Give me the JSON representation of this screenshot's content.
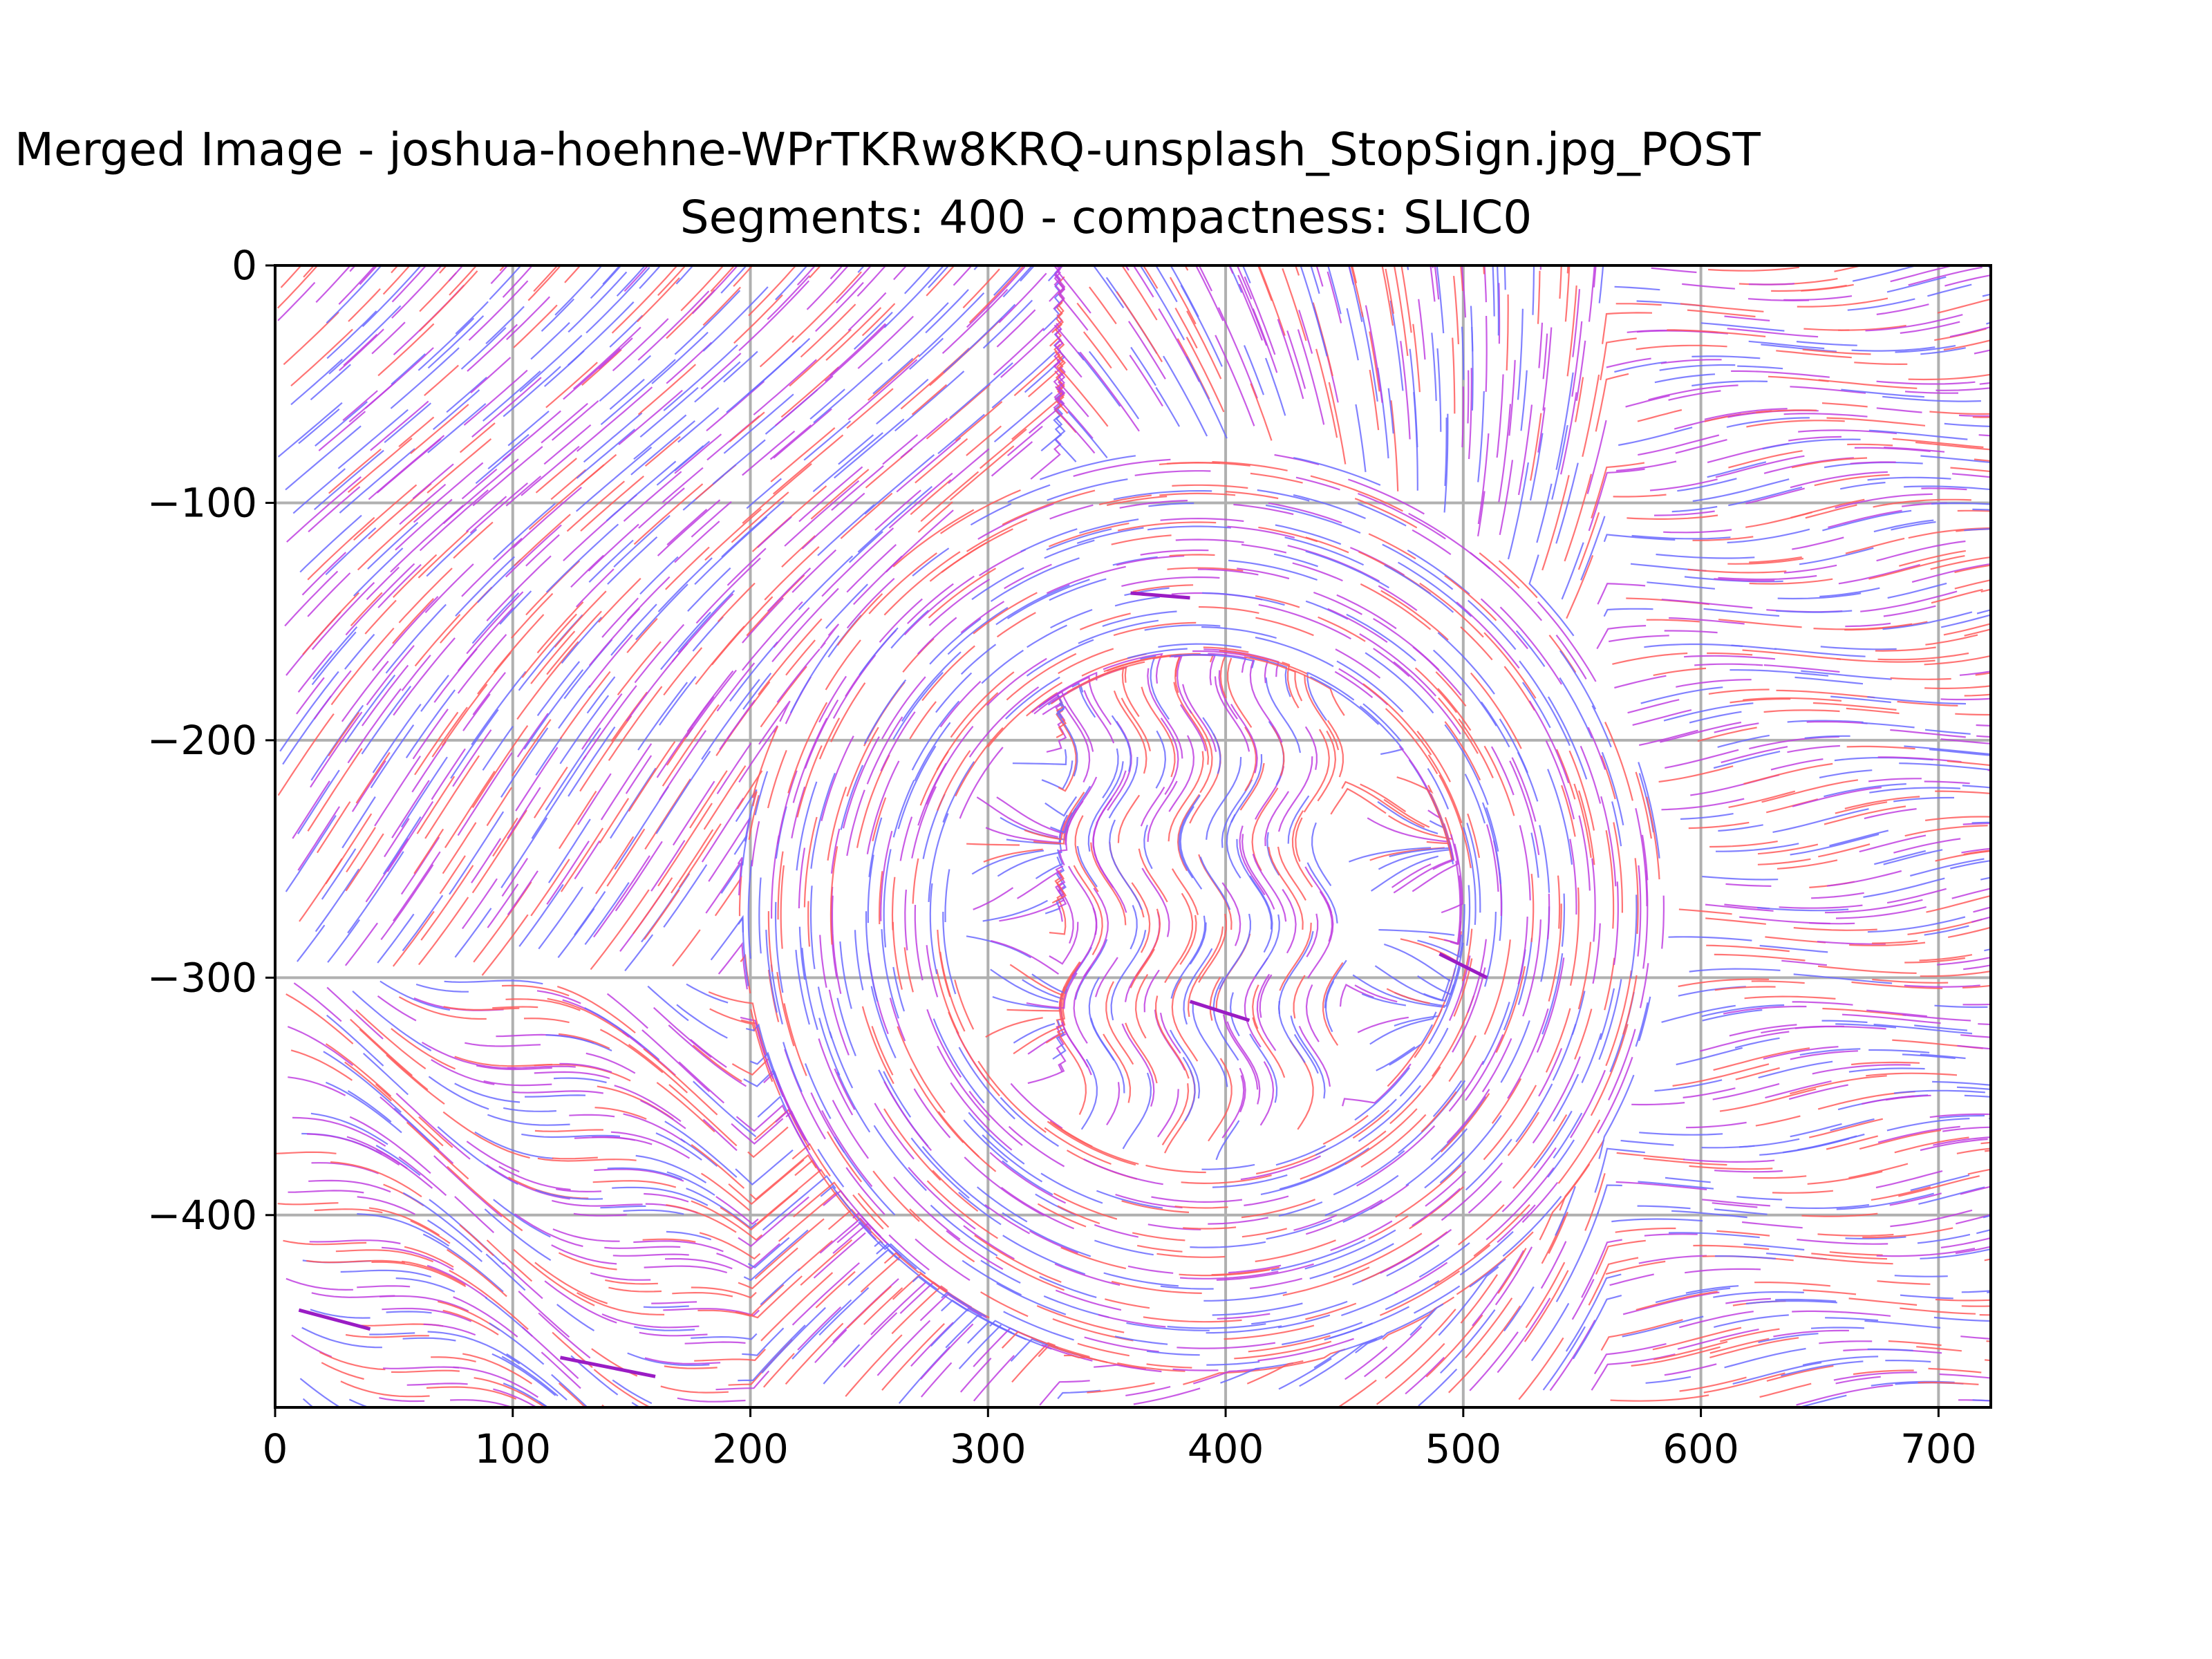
{
  "chart_data": {
    "type": "streamplot",
    "title_line1": "Merged Image - joshua-hoehne-WPrTKRw8KRQ-unsplash_StopSign.jpg_POST",
    "title_line2": "Segments: 400 - compactness: SLIC0",
    "xlabel": "",
    "ylabel": "",
    "xlim": [
      0,
      722
    ],
    "ylim": [
      -481,
      0
    ],
    "xticks": [
      0,
      100,
      200,
      300,
      400,
      500,
      600,
      700
    ],
    "yticks": [
      0,
      -100,
      -200,
      -300,
      -400
    ],
    "xtick_labels": [
      "0",
      "100",
      "200",
      "300",
      "400",
      "500",
      "600",
      "700"
    ],
    "ytick_labels": [
      "0",
      "−100",
      "−200",
      "−300",
      "−400"
    ],
    "grid": true,
    "line_colors": [
      "#ff5c5c",
      "#6b6bff",
      "#c040e0",
      "#9a1cc4"
    ],
    "octagon_center": [
      390,
      -272
    ],
    "octagon_radius": 195
  }
}
